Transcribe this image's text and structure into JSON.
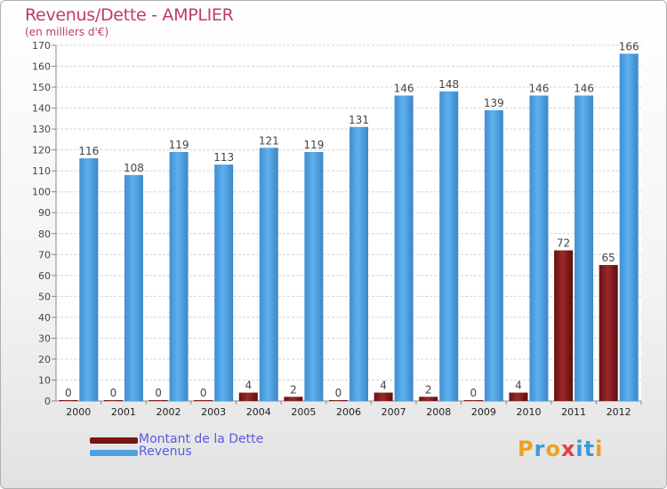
{
  "title": "Revenus/Dette - AMPLIER",
  "subtitle": "(en milliers d'€)",
  "colors": {
    "dette": "#7a1515",
    "revenus": "#4e9fe0",
    "title": "#c03a6e",
    "legend_text": "#5a5ae0"
  },
  "logo": {
    "letters": [
      "P",
      "r",
      "o",
      "x",
      "i",
      "t",
      "i"
    ],
    "colors": [
      "#f0a020",
      "#3a9ad8",
      "#f0a020",
      "#e04040",
      "#3a9ad8",
      "#3a9ad8",
      "#f0a020"
    ]
  },
  "chart_data": {
    "type": "bar",
    "title": "Revenus/Dette - AMPLIER",
    "subtitle": "(en milliers d'€)",
    "categories": [
      "2000",
      "2001",
      "2002",
      "2003",
      "2004",
      "2005",
      "2006",
      "2007",
      "2008",
      "2009",
      "2010",
      "2011",
      "2012"
    ],
    "series": [
      {
        "name": "Montant de la Dette",
        "values": [
          0,
          0,
          0,
          0,
          4,
          2,
          0,
          4,
          2,
          0,
          4,
          72,
          65
        ]
      },
      {
        "name": "Revenus",
        "values": [
          116,
          108,
          119,
          113,
          121,
          119,
          131,
          146,
          148,
          139,
          146,
          146,
          166
        ]
      }
    ],
    "ylim": [
      0,
      170
    ],
    "yticks": [
      0,
      10,
      20,
      30,
      40,
      50,
      60,
      70,
      80,
      90,
      100,
      110,
      120,
      130,
      140,
      150,
      160,
      170
    ],
    "grid": true,
    "legend": "bottom-left",
    "xlabel": "",
    "ylabel": ""
  }
}
